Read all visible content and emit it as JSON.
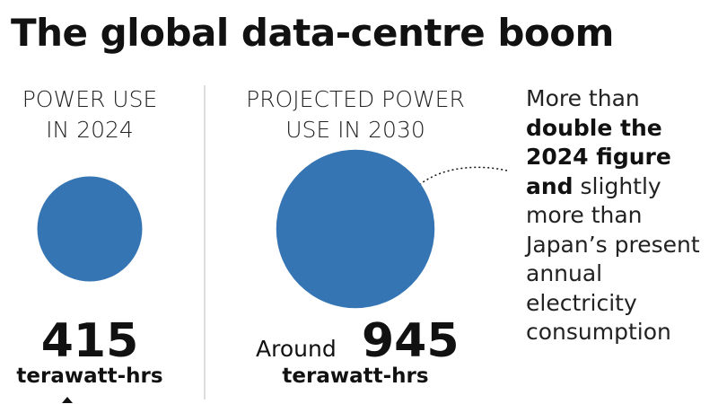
{
  "chart_data": {
    "type": "bubble",
    "title": "The global data-centre boom",
    "categories": [
      "POWER USE IN 2024",
      "PROJECTED POWER USE IN 2030"
    ],
    "values": [
      415,
      945
    ],
    "value_prefixes": [
      null,
      "Around"
    ],
    "unit": "terawatt-hrs",
    "color": "#3575b3",
    "annotation": [
      {
        "text": "More than",
        "bold": false
      },
      {
        "text": "double the 2024 figure and",
        "bold": true
      },
      {
        "text": "slightly more than Japan’s present annual electricity consumption",
        "bold": false
      }
    ]
  }
}
